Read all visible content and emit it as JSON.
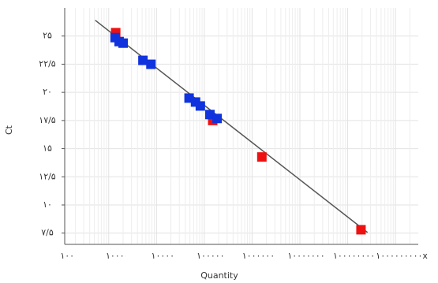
{
  "chart_data": {
    "type": "scatter",
    "x_label": "Quantity",
    "y_label": "Ct",
    "xscale": "log",
    "grid": true,
    "xlim": [
      120,
      3000000000
    ],
    "ylim": [
      6.5,
      27.5
    ],
    "xticks": [
      {
        "value": 100,
        "label": "۱۰۰"
      },
      {
        "value": 1000,
        "label": "۱۰۰۰"
      },
      {
        "value": 10000,
        "label": "۱۰۰۰۰"
      },
      {
        "value": 100000,
        "label": "۱۰۰۰۰۰"
      },
      {
        "value": 1000000,
        "label": "۱۰۰۰۰۰۰"
      },
      {
        "value": 10000000,
        "label": "۱۰۰۰۰۰۰۰"
      },
      {
        "value": 100000000,
        "label": "۱۰۰۰۰۰۰۰۰"
      },
      {
        "value": 1000000000,
        "label": "۱۰۰۰۰۰۰۰۰۰x"
      }
    ],
    "yticks": [
      {
        "value": 7.5,
        "label": "۷/۵"
      },
      {
        "value": 10,
        "label": "۱۰"
      },
      {
        "value": 12.5,
        "label": "۱۲/۵"
      },
      {
        "value": 15,
        "label": "۱۵"
      },
      {
        "value": 17.5,
        "label": "۱۷/۵"
      },
      {
        "value": 20,
        "label": "۲۰"
      },
      {
        "value": 22.5,
        "label": "۲۲/۵"
      },
      {
        "value": 25,
        "label": "۲۵"
      }
    ],
    "fit_line": {
      "color": "#555555",
      "x": [
        521,
        260000000
      ],
      "y": [
        26.4,
        7.56
      ]
    },
    "series": [
      {
        "color": "#ee1111",
        "x": [
          1400,
          150000,
          1600000,
          190000000
        ],
        "y": [
          25.3,
          17.5,
          14.26,
          7.8
        ]
      },
      {
        "color": "#1133dd",
        "x": [
          1360,
          1650,
          2000,
          5200,
          7650,
          48000,
          65600,
          82600,
          131000,
          185000
        ],
        "y": [
          24.86,
          24.51,
          24.37,
          22.84,
          22.49,
          19.49,
          19.14,
          18.79,
          18.03,
          17.68
        ]
      }
    ]
  }
}
